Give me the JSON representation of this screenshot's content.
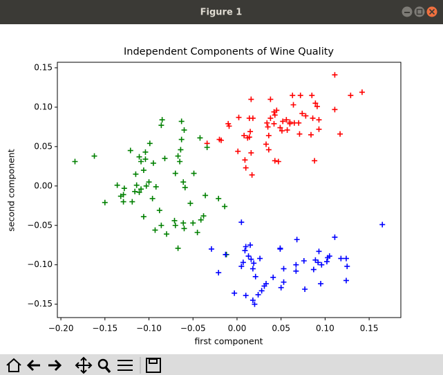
{
  "window": {
    "title": "Figure 1"
  },
  "chart_data": {
    "type": "scatter",
    "title": "Independent Components of Wine Quality",
    "xlabel": "first component",
    "ylabel": "second component",
    "xlim": [
      -0.204,
      0.186
    ],
    "ylim": [
      -0.167,
      0.157
    ],
    "xticks": [
      {
        "value": -0.2,
        "label": "−0.20"
      },
      {
        "value": -0.15,
        "label": "−0.15"
      },
      {
        "value": -0.1,
        "label": "−0.10"
      },
      {
        "value": -0.05,
        "label": "−0.05"
      },
      {
        "value": 0,
        "label": "0.00"
      },
      0.05,
      {
        "value": 0.1,
        "label": "0.10"
      },
      0.15
    ],
    "yticks": [
      {
        "value": -0.15,
        "label": "−0.15"
      },
      {
        "value": -0.1,
        "label": "−0.10"
      },
      {
        "value": -0.05,
        "label": "−0.05"
      },
      {
        "value": 0,
        "label": "0.00"
      },
      0.05,
      {
        "value": 0.1,
        "label": "0.10"
      },
      0.15
    ],
    "series": [
      {
        "color": "#ff0000",
        "x": [
          0.111,
          0.142,
          0.129,
          0.063,
          0.072,
          0.085,
          0.038,
          0.016,
          0.111,
          0.089,
          0.064,
          0.091,
          0.074,
          0.042,
          0.045,
          0.043,
          0.052,
          0.06,
          0.065,
          0.07,
          0.078,
          0.086,
          0.093,
          0.056,
          0.038,
          0.002,
          0.014,
          0.018,
          0.117,
          0.093,
          0.06,
          0.051,
          0.057,
          0.071,
          0.034,
          0.042,
          0.015,
          0.008,
          0.014,
          -0.018,
          -0.034,
          -0.02,
          -0.01,
          -0.009,
          0.036,
          0.036,
          0.033,
          0.012,
          0.001,
          0.016,
          0.017,
          0.01,
          0.009,
          0.043,
          0.047,
          0.088,
          0.084,
          0.049,
          0.035
        ],
        "y": [
          0.141,
          0.119,
          0.115,
          0.115,
          0.115,
          0.115,
          0.11,
          0.11,
          0.097,
          0.105,
          0.103,
          0.101,
          0.092,
          0.094,
          0.096,
          0.09,
          0.082,
          0.081,
          0.08,
          0.08,
          0.089,
          0.086,
          0.084,
          0.084,
          0.086,
          0.087,
          0.086,
          0.086,
          0.066,
          0.072,
          0.079,
          0.07,
          0.071,
          0.066,
          0.08,
          0.079,
          0.069,
          0.064,
          0.062,
          0.058,
          0.054,
          0.059,
          0.079,
          0.076,
          0.064,
          0.046,
          0.053,
          0.061,
          0.044,
          0.042,
          0.014,
          0.023,
          0.033,
          0.032,
          0.031,
          0.032,
          0.065,
          0.074,
          0.075
        ]
      },
      {
        "color": "#008000",
        "x": [
          -0.085,
          -0.086,
          -0.063,
          -0.06,
          -0.042,
          -0.063,
          -0.064,
          -0.067,
          -0.065,
          -0.034,
          -0.099,
          -0.104,
          -0.121,
          -0.162,
          -0.184,
          -0.104,
          -0.111,
          -0.109,
          -0.095,
          -0.082,
          -0.115,
          -0.106,
          -0.1,
          -0.136,
          -0.128,
          -0.114,
          -0.116,
          -0.111,
          -0.109,
          -0.103,
          -0.096,
          -0.092,
          -0.132,
          -0.129,
          -0.119,
          -0.129,
          -0.15,
          -0.106,
          -0.088,
          -0.061,
          -0.059,
          -0.049,
          -0.07,
          -0.053,
          -0.036,
          -0.021,
          -0.014,
          -0.038,
          -0.041,
          -0.05,
          -0.045,
          -0.071,
          -0.07,
          -0.061,
          -0.06,
          -0.086,
          -0.093,
          -0.08,
          -0.067,
          -0.012
        ],
        "y": [
          0.084,
          0.077,
          0.082,
          0.071,
          0.061,
          0.059,
          0.046,
          0.038,
          0.031,
          0.049,
          0.054,
          0.043,
          0.045,
          0.038,
          0.031,
          0.034,
          0.037,
          0.031,
          0.029,
          0.035,
          0.015,
          0.02,
          0.005,
          0.001,
          -0.003,
          0.001,
          -0.007,
          -0.008,
          -0.004,
          0.0,
          -0.016,
          -0.001,
          -0.013,
          -0.011,
          -0.02,
          -0.02,
          -0.021,
          -0.039,
          -0.031,
          0.005,
          -0.002,
          0.016,
          0.016,
          -0.022,
          -0.012,
          -0.016,
          -0.026,
          -0.038,
          -0.043,
          -0.047,
          -0.059,
          -0.044,
          -0.05,
          -0.047,
          -0.054,
          -0.05,
          -0.056,
          -0.061,
          -0.079,
          -0.087
        ]
      },
      {
        "color": "#0000ff",
        "x": [
          0.005,
          0.165,
          0.068,
          0.111,
          -0.029,
          0.049,
          0.049,
          0.01,
          0.015,
          0.009,
          0.093,
          0.013,
          0.016,
          0.026,
          0.019,
          0.007,
          0.005,
          0.018,
          0.076,
          0.089,
          0.092,
          0.103,
          0.105,
          0.124,
          0.118,
          0.096,
          0.102,
          0.125,
          0.053,
          0.067,
          0.067,
          0.087,
          -0.021,
          0.021,
          0.033,
          0.031,
          0.053,
          0.05,
          0.028,
          0.095,
          0.124,
          0.077,
          -0.003,
          0.024,
          0.018,
          0.02,
          0.01,
          0.041,
          -0.013
        ],
        "y": [
          -0.046,
          -0.049,
          -0.068,
          -0.065,
          -0.08,
          -0.08,
          -0.079,
          -0.077,
          -0.075,
          -0.082,
          -0.083,
          -0.089,
          -0.093,
          -0.092,
          -0.098,
          -0.097,
          -0.102,
          -0.105,
          -0.095,
          -0.094,
          -0.097,
          -0.091,
          -0.089,
          -0.092,
          -0.092,
          -0.1,
          -0.096,
          -0.102,
          -0.105,
          -0.1,
          -0.108,
          -0.106,
          -0.11,
          -0.115,
          -0.124,
          -0.127,
          -0.122,
          -0.129,
          -0.133,
          -0.124,
          -0.12,
          -0.131,
          -0.136,
          -0.138,
          -0.145,
          -0.15,
          -0.139,
          -0.116,
          -0.087
        ]
      }
    ]
  }
}
